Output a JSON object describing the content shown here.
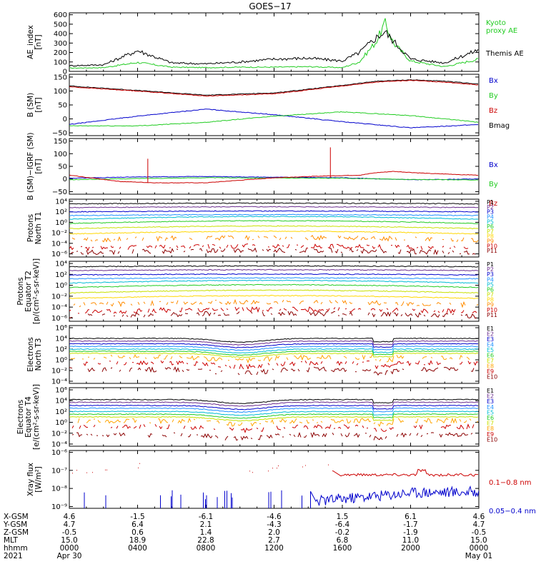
{
  "title": "GOES−17",
  "panels": [
    {
      "id": "ae",
      "ylabel": [
        "AE_index",
        "[nT]"
      ],
      "ticks": [
        {
          "v": 0,
          "t": "0"
        },
        {
          "v": 100,
          "t": "100"
        },
        {
          "v": 200,
          "t": "200"
        },
        {
          "v": 300,
          "t": "300"
        },
        {
          "v": 400,
          "t": "400"
        },
        {
          "v": 500,
          "t": "500"
        },
        {
          "v": 600,
          "t": "600"
        }
      ],
      "ylim": [
        0,
        620
      ],
      "log": false,
      "legend": [
        {
          "text": "Kyoto",
          "color": "#22cc22"
        },
        {
          "text": "proxy AE",
          "color": "#22cc22"
        },
        {
          "text": "",
          "color": "#000000"
        },
        {
          "text": "Themis AE",
          "color": "#000000"
        }
      ]
    },
    {
      "id": "bsm",
      "ylabel": [
        "B (SM)",
        "[nT]"
      ],
      "ticks": [
        {
          "v": -50,
          "t": "−50"
        },
        {
          "v": 0,
          "t": "0"
        },
        {
          "v": 50,
          "t": "50"
        },
        {
          "v": 100,
          "t": "100"
        },
        {
          "v": 150,
          "t": "150"
        }
      ],
      "ylim": [
        -60,
        160
      ],
      "log": false,
      "legend": [
        {
          "text": "Bx",
          "color": "#0000cc"
        },
        {
          "text": "By",
          "color": "#22cc22"
        },
        {
          "text": "Bz",
          "color": "#cc0000"
        },
        {
          "text": "Bmag",
          "color": "#000000"
        }
      ]
    },
    {
      "id": "bigrf",
      "ylabel": [
        "B (SM)−IGRF (SM)",
        "[nT]"
      ],
      "ticks": [
        {
          "v": -50,
          "t": "−50"
        },
        {
          "v": 0,
          "t": "0"
        },
        {
          "v": 50,
          "t": "50"
        },
        {
          "v": 100,
          "t": "100"
        },
        {
          "v": 150,
          "t": "150"
        }
      ],
      "ylim": [
        -60,
        160
      ],
      "log": false,
      "legend": [
        {
          "text": "Bx",
          "color": "#0000cc"
        },
        {
          "text": "By",
          "color": "#22cc22"
        },
        {
          "text": "Bz",
          "color": "#cc0000"
        }
      ]
    },
    {
      "id": "protons_t1",
      "ylabel": [
        "Protons",
        "North T1"
      ],
      "ticks": [
        {
          "v": -6,
          "t": "10⁻⁶"
        },
        {
          "v": -4,
          "t": "10⁻⁴"
        },
        {
          "v": -2,
          "t": "10⁻²"
        },
        {
          "v": 0,
          "t": "10⁰"
        },
        {
          "v": 2,
          "t": "10²"
        },
        {
          "v": 4,
          "t": "10⁴"
        }
      ],
      "ylim": [
        -6.6,
        4.4
      ],
      "log": true,
      "legend": [
        {
          "text": "P1",
          "color": "#000000"
        },
        {
          "text": "P2",
          "color": "#6a2c8e"
        },
        {
          "text": "P3",
          "color": "#0000cc"
        },
        {
          "text": "P4",
          "color": "#1e90ff"
        },
        {
          "text": "P5",
          "color": "#00bcd4"
        },
        {
          "text": "P6",
          "color": "#22cc22"
        },
        {
          "text": "P7",
          "color": "#c8e000"
        },
        {
          "text": "P8",
          "color": "#ffd700"
        },
        {
          "text": "P9",
          "color": "#ff8c00"
        },
        {
          "text": "P10",
          "color": "#cc0000"
        },
        {
          "text": "P11",
          "color": "#8b0000"
        }
      ]
    },
    {
      "id": "protons_t2",
      "ylabel": [
        "Protons",
        "Equator T2",
        "[p/(cm²-s-sr-keV)]"
      ],
      "ticks": [
        {
          "v": -6,
          "t": "10⁻⁶"
        },
        {
          "v": -4,
          "t": "10⁻⁴"
        },
        {
          "v": -2,
          "t": "10⁻²"
        },
        {
          "v": 0,
          "t": "10⁰"
        },
        {
          "v": 2,
          "t": "10²"
        },
        {
          "v": 4,
          "t": "10⁴"
        }
      ],
      "ylim": [
        -6.6,
        4.4
      ],
      "log": true,
      "legend": [
        {
          "text": "P1",
          "color": "#000000"
        },
        {
          "text": "P2",
          "color": "#6a2c8e"
        },
        {
          "text": "P3",
          "color": "#0000cc"
        },
        {
          "text": "P4",
          "color": "#1e90ff"
        },
        {
          "text": "P5",
          "color": "#00bcd4"
        },
        {
          "text": "P6",
          "color": "#22cc22"
        },
        {
          "text": "P7",
          "color": "#c8e000"
        },
        {
          "text": "P8",
          "color": "#ffd700"
        },
        {
          "text": "P9",
          "color": "#ff8c00"
        },
        {
          "text": "P10",
          "color": "#cc0000"
        },
        {
          "text": "P11",
          "color": "#8b0000"
        }
      ]
    },
    {
      "id": "electrons_t3",
      "ylabel": [
        "Electrons",
        "North T3"
      ],
      "ticks": [
        {
          "v": -4,
          "t": "10⁻⁴"
        },
        {
          "v": -2,
          "t": "10⁻²"
        },
        {
          "v": 0,
          "t": "10⁰"
        },
        {
          "v": 2,
          "t": "10²"
        },
        {
          "v": 4,
          "t": "10⁴"
        },
        {
          "v": 6,
          "t": "10⁶"
        }
      ],
      "ylim": [
        -4.4,
        6.4
      ],
      "log": true,
      "legend": [
        {
          "text": "E1",
          "color": "#000000"
        },
        {
          "text": "E2",
          "color": "#6a2c8e"
        },
        {
          "text": "E3",
          "color": "#0000cc"
        },
        {
          "text": "E4",
          "color": "#1e90ff"
        },
        {
          "text": "E5",
          "color": "#00bcd4"
        },
        {
          "text": "E6",
          "color": "#22cc22"
        },
        {
          "text": "E7",
          "color": "#c8e000"
        },
        {
          "text": "E8",
          "color": "#ffa500"
        },
        {
          "text": "E9",
          "color": "#cc0000"
        },
        {
          "text": "E10",
          "color": "#8b0000"
        }
      ]
    },
    {
      "id": "electrons_t4",
      "ylabel": [
        "Electrons",
        "Equator T4",
        "[e/(cm²-s-sr-keV)]"
      ],
      "ticks": [
        {
          "v": -4,
          "t": "10⁻⁴"
        },
        {
          "v": -2,
          "t": "10⁻²"
        },
        {
          "v": 0,
          "t": "10⁰"
        },
        {
          "v": 2,
          "t": "10²"
        },
        {
          "v": 4,
          "t": "10⁴"
        },
        {
          "v": 6,
          "t": "10⁶"
        }
      ],
      "ylim": [
        -4.4,
        6.4
      ],
      "log": true,
      "legend": [
        {
          "text": "E1",
          "color": "#000000"
        },
        {
          "text": "E2",
          "color": "#6a2c8e"
        },
        {
          "text": "E3",
          "color": "#0000cc"
        },
        {
          "text": "E4",
          "color": "#1e90ff"
        },
        {
          "text": "E5",
          "color": "#00bcd4"
        },
        {
          "text": "E6",
          "color": "#22cc22"
        },
        {
          "text": "E7",
          "color": "#c8e000"
        },
        {
          "text": "E8",
          "color": "#ffa500"
        },
        {
          "text": "E9",
          "color": "#cc0000"
        },
        {
          "text": "E10",
          "color": "#8b0000"
        }
      ]
    },
    {
      "id": "xray",
      "ylabel": [
        "Xray flux",
        "[W/m²]"
      ],
      "ticks": [
        {
          "v": -9,
          "t": "10⁻⁹"
        },
        {
          "v": -8,
          "t": "10⁻⁸"
        },
        {
          "v": -7,
          "t": "10⁻⁷"
        },
        {
          "v": -6,
          "t": "10⁻⁶"
        }
      ],
      "ylim": [
        -9.1,
        -5.9
      ],
      "log": true,
      "legend": [
        {
          "text": "0.1−0.8 nm",
          "color": "#cc0000"
        },
        {
          "text": "0.05−0.4 nm",
          "color": "#0000cc"
        }
      ]
    }
  ],
  "footer": {
    "rows": [
      {
        "label": "X-GSM",
        "values": [
          "4.6",
          "-1.5",
          "-6.1",
          "-4.6",
          "1.5",
          "6.1",
          "4.6"
        ]
      },
      {
        "label": "Y-GSM",
        "values": [
          "4.7",
          "6.4",
          "2.1",
          "-4.3",
          "-6.4",
          "-1.7",
          "4.7"
        ]
      },
      {
        "label": "Z-GSM",
        "values": [
          "-0.5",
          "0.6",
          "1.4",
          "2.0",
          "-0.2",
          "-1.9",
          "-0.5"
        ]
      },
      {
        "label": "MLT",
        "values": [
          "15.0",
          "18.9",
          "22.8",
          "2.7",
          "6.8",
          "11.0",
          "15.0"
        ]
      },
      {
        "label": "hhmm",
        "values": [
          "0000",
          "0400",
          "0800",
          "1200",
          "1600",
          "2000",
          "0000"
        ]
      }
    ],
    "year": "2021",
    "start_date": "Apr 30",
    "end_date": "May 01"
  },
  "chart_data": {
    "type": "line",
    "title": "GOES−17",
    "time_ticks": [
      "0000",
      "0400",
      "0800",
      "1200",
      "1600",
      "2000",
      "0000"
    ],
    "date_range": [
      "2021 Apr 30",
      "2021 May 01"
    ],
    "series": [
      {
        "panel": "ae",
        "name": "Kyoto proxy AE",
        "color": "#22cc22",
        "x": [
          "0000",
          "0200",
          "0400",
          "0600",
          "0800",
          "1000",
          "1200",
          "1400",
          "1600",
          "1700",
          "1800",
          "1830",
          "1900",
          "2000",
          "2200",
          "0000"
        ],
        "y": [
          35,
          40,
          95,
          45,
          40,
          45,
          45,
          50,
          40,
          100,
          320,
          510,
          300,
          110,
          50,
          130
        ]
      },
      {
        "panel": "ae",
        "name": "Themis AE",
        "color": "#000000",
        "x": [
          "0000",
          "0200",
          "0400",
          "0600",
          "0800",
          "1000",
          "1200",
          "1400",
          "1600",
          "1700",
          "1800",
          "1830",
          "1900",
          "2000",
          "2200",
          "0000"
        ],
        "y": [
          60,
          70,
          220,
          90,
          80,
          100,
          130,
          140,
          110,
          200,
          360,
          420,
          320,
          130,
          90,
          230
        ]
      },
      {
        "panel": "bsm",
        "name": "Bmag",
        "color": "#000000",
        "x": [
          "0000",
          "0400",
          "0800",
          "1200",
          "1600",
          "1800",
          "2000",
          "2200",
          "0000"
        ],
        "y": [
          118,
          102,
          85,
          93,
          120,
          135,
          140,
          135,
          125
        ]
      },
      {
        "panel": "bsm",
        "name": "Bz",
        "color": "#cc0000",
        "x": [
          "0000",
          "0400",
          "0800",
          "1200",
          "1600",
          "1800",
          "2000",
          "2200",
          "0000"
        ],
        "y": [
          115,
          100,
          82,
          90,
          118,
          132,
          138,
          132,
          122
        ]
      },
      {
        "panel": "bsm",
        "name": "Bx",
        "color": "#0000cc",
        "x": [
          "0000",
          "0400",
          "0800",
          "1200",
          "1600",
          "2000",
          "0000"
        ],
        "y": [
          -20,
          10,
          35,
          15,
          -10,
          -32,
          -20
        ]
      },
      {
        "panel": "bsm",
        "name": "By",
        "color": "#22cc22",
        "x": [
          "0000",
          "0400",
          "0800",
          "1200",
          "1600",
          "2000",
          "0000"
        ],
        "y": [
          -25,
          -25,
          -12,
          10,
          25,
          12,
          -12
        ]
      },
      {
        "panel": "bigrf",
        "name": "Bx",
        "color": "#0000cc",
        "x": [
          "0000",
          "0400",
          "0800",
          "1200",
          "1600",
          "2000",
          "0000"
        ],
        "y": [
          3,
          8,
          10,
          7,
          5,
          -3,
          0
        ]
      },
      {
        "panel": "bigrf",
        "name": "By",
        "color": "#22cc22",
        "x": [
          "0000",
          "0400",
          "0800",
          "1200",
          "1600",
          "2000",
          "0000"
        ],
        "y": [
          -3,
          2,
          5,
          4,
          3,
          -2,
          -4
        ]
      },
      {
        "panel": "bigrf",
        "name": "Bz",
        "color": "#cc0000",
        "x": [
          "0000",
          "0300",
          "0500",
          "0800",
          "1000",
          "1200",
          "1500",
          "1700",
          "1800",
          "1900",
          "2100",
          "0000"
        ],
        "y": [
          15,
          -10,
          -15,
          -15,
          -5,
          5,
          12,
          15,
          25,
          30,
          22,
          15
        ]
      }
    ],
    "ae_ylim": [
      0,
      620
    ],
    "b_ylim": [
      -60,
      160
    ],
    "xray_log_ylim": [
      -9.1,
      -5.9
    ]
  }
}
